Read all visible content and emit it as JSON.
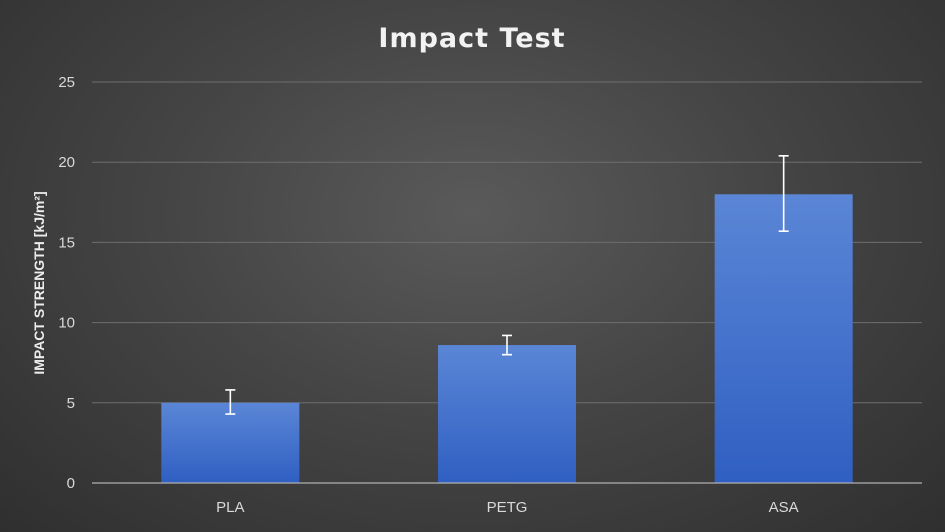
{
  "chart_data": {
    "type": "bar",
    "title": "Impact Test",
    "xlabel": "",
    "ylabel": "IMPACT STRENGTH [kJ/m²]",
    "categories": [
      "PLA",
      "PETG",
      "ASA"
    ],
    "values": [
      5.0,
      8.6,
      18.0
    ],
    "error_low": [
      4.3,
      8.0,
      15.7
    ],
    "error_high": [
      5.8,
      9.2,
      20.4
    ],
    "ylim": [
      0,
      25
    ],
    "yticks": [
      "0",
      "5",
      "10",
      "15",
      "20",
      "25"
    ],
    "grid": true,
    "bar_color_top": "#5b86d6",
    "bar_color_bottom": "#2f5fc2"
  }
}
